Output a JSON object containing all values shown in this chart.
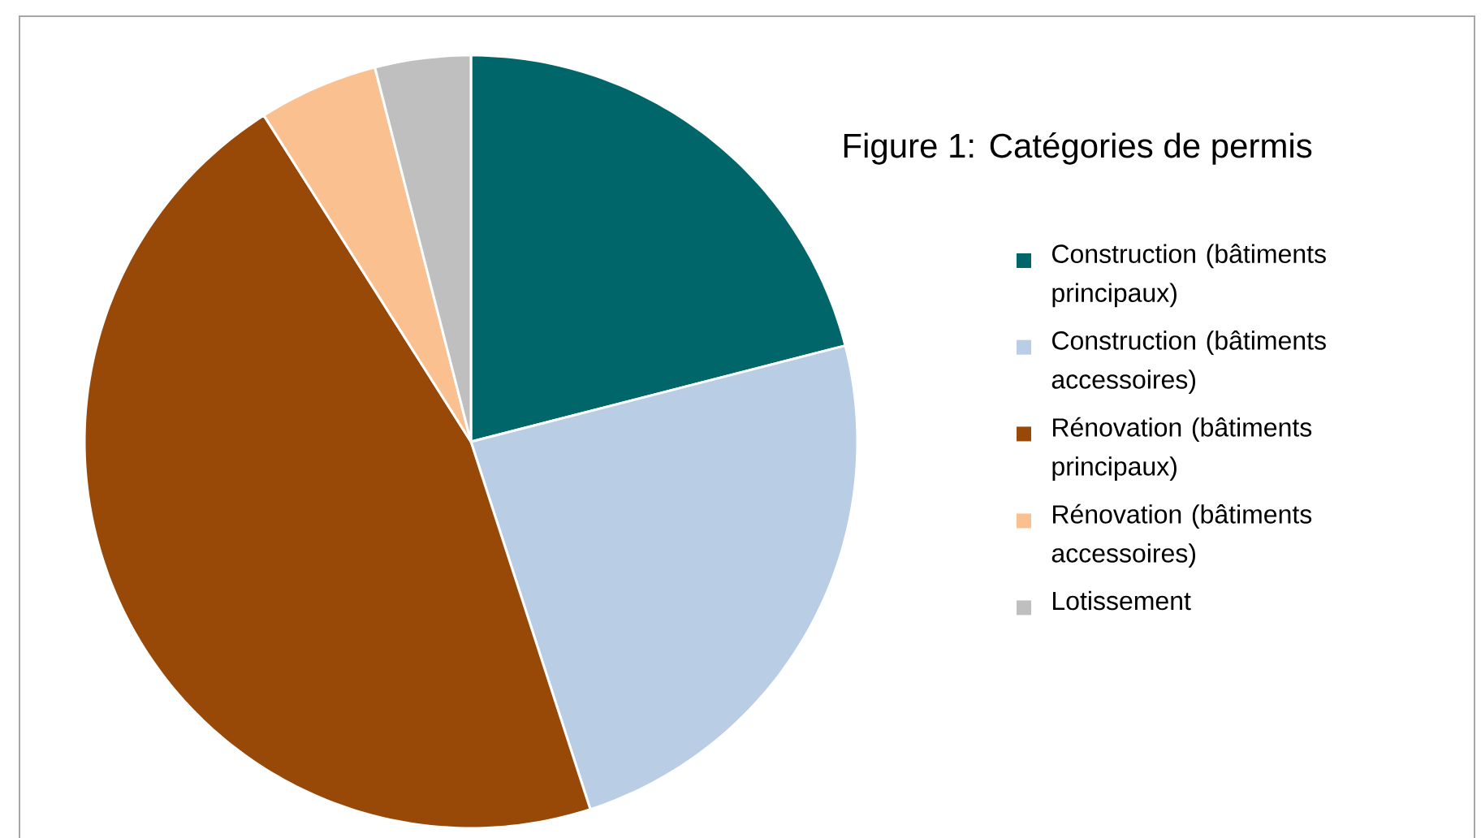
{
  "chart_data": {
    "type": "pie",
    "title": "Figure 1: Catégories de permis",
    "categories": [
      "Construction (bâtiments principaux)",
      "Construction (bâtiments accessoires)",
      "Rénovation (bâtiments principaux)",
      "Rénovation (bâtiments accessoires)",
      "Lotissement"
    ],
    "values": [
      21,
      24,
      46,
      5,
      4
    ],
    "colors": [
      "#00666a",
      "#b9cde5",
      "#984807",
      "#fac090",
      "#bfbfbf"
    ],
    "legend": "right"
  }
}
